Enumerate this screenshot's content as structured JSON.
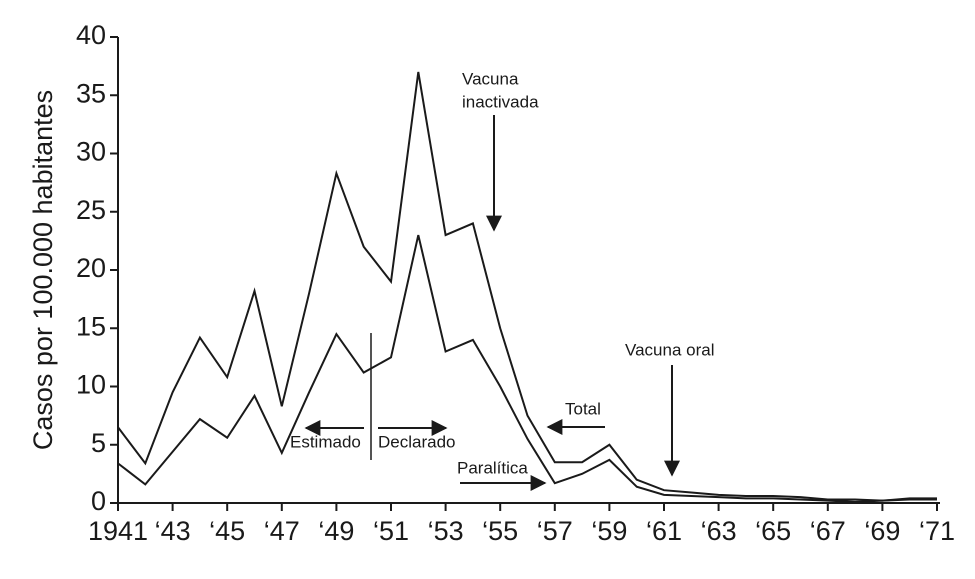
{
  "chart_data": {
    "type": "line",
    "y_label": "Casos por 100.000 habitantes",
    "x": [
      1941,
      1942,
      1943,
      1944,
      1945,
      1946,
      1947,
      1948,
      1949,
      1950,
      1951,
      1952,
      1953,
      1954,
      1955,
      1956,
      1957,
      1958,
      1959,
      1960,
      1961,
      1962,
      1963,
      1964,
      1965,
      1966,
      1967,
      1968,
      1969,
      1970,
      1971
    ],
    "series": [
      {
        "name": "Total",
        "color": "#1a1a1a",
        "values": [
          6.5,
          3.4,
          9.5,
          14.2,
          10.8,
          18.2,
          8.3,
          18,
          28.3,
          22,
          19,
          37,
          23,
          24,
          15,
          7.5,
          3.5,
          3.5,
          5,
          2,
          1.1,
          0.9,
          0.7,
          0.6,
          0.6,
          0.5,
          0.3,
          0.3,
          0.2,
          0.4,
          0.4
        ]
      },
      {
        "name": "Paralítica",
        "color": "#1a1a1a",
        "values": [
          3.4,
          1.6,
          4.4,
          7.2,
          5.6,
          9.2,
          4.3,
          9.5,
          14.5,
          11.2,
          12.5,
          23,
          13,
          14,
          10,
          5.5,
          1.7,
          2.5,
          3.7,
          1.4,
          0.7,
          0.6,
          0.5,
          0.4,
          0.4,
          0.3,
          0.2,
          0.1,
          0.2,
          0.3,
          0.3
        ]
      }
    ],
    "xlim": [
      1941,
      1971
    ],
    "xticks": [
      {
        "value": 1941,
        "label": "1941"
      },
      {
        "value": 1943,
        "label": "‘43"
      },
      {
        "value": 1945,
        "label": "‘45"
      },
      {
        "value": 1947,
        "label": "‘47"
      },
      {
        "value": 1949,
        "label": "‘49"
      },
      {
        "value": 1951,
        "label": "‘51"
      },
      {
        "value": 1953,
        "label": "‘53"
      },
      {
        "value": 1955,
        "label": "‘55"
      },
      {
        "value": 1957,
        "label": "‘57"
      },
      {
        "value": 1959,
        "label": "‘59"
      },
      {
        "value": 1961,
        "label": "‘61"
      },
      {
        "value": 1963,
        "label": "‘63"
      },
      {
        "value": 1965,
        "label": "‘65"
      },
      {
        "value": 1967,
        "label": "‘67"
      },
      {
        "value": 1969,
        "label": "‘69"
      },
      {
        "value": 1971,
        "label": "‘71"
      }
    ],
    "ylim": [
      0,
      40
    ],
    "yticks": [
      0,
      5,
      10,
      15,
      20,
      25,
      30,
      35,
      40
    ],
    "annotations": {
      "inactivated": [
        "Vacuna",
        "inactivada"
      ],
      "oral": "Vacuna oral",
      "estimated": "Estimado",
      "declared": "Declarado"
    }
  }
}
